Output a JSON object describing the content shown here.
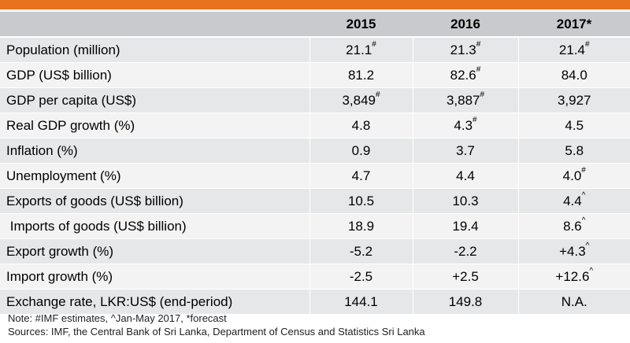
{
  "columns": [
    "",
    "2015",
    "2016",
    "2017*"
  ],
  "rows": [
    {
      "label": "Population (million)",
      "cells": [
        {
          "v": "21.1",
          "s": "#"
        },
        {
          "v": "21.3",
          "s": "#"
        },
        {
          "v": "21.4",
          "s": "#"
        }
      ]
    },
    {
      "label": "GDP (US$ billion)",
      "cells": [
        {
          "v": "81.2",
          "s": ""
        },
        {
          "v": "82.6",
          "s": "#"
        },
        {
          "v": "84.0",
          "s": ""
        }
      ]
    },
    {
      "label": "GDP per capita (US$)",
      "cells": [
        {
          "v": "3,849",
          "s": "#"
        },
        {
          "v": "3,887",
          "s": "#"
        },
        {
          "v": "3,927",
          "s": ""
        }
      ]
    },
    {
      "label": "Real GDP growth (%)",
      "cells": [
        {
          "v": "4.8",
          "s": ""
        },
        {
          "v": "4.3",
          "s": "#"
        },
        {
          "v": "4.5",
          "s": ""
        }
      ]
    },
    {
      "label": "Inflation (%)",
      "cells": [
        {
          "v": "0.9",
          "s": ""
        },
        {
          "v": "3.7",
          "s": ""
        },
        {
          "v": "5.8",
          "s": ""
        }
      ]
    },
    {
      "label": "Unemployment (%)",
      "cells": [
        {
          "v": "4.7",
          "s": ""
        },
        {
          "v": "4.4",
          "s": ""
        },
        {
          "v": "4.0",
          "s": "#"
        }
      ]
    },
    {
      "label": "Exports of goods (US$ billion)",
      "cells": [
        {
          "v": "10.5",
          "s": ""
        },
        {
          "v": "10.3",
          "s": ""
        },
        {
          "v": "4.4",
          "s": "^"
        }
      ]
    },
    {
      "label": " Imports of goods (US$ billion)",
      "cells": [
        {
          "v": "18.9",
          "s": ""
        },
        {
          "v": "19.4",
          "s": ""
        },
        {
          "v": "8.6",
          "s": "^"
        }
      ]
    },
    {
      "label": "Export growth (%)",
      "cells": [
        {
          "v": "-5.2",
          "s": ""
        },
        {
          "v": "-2.2",
          "s": ""
        },
        {
          "v": "+4.3",
          "s": "^"
        }
      ]
    },
    {
      "label": "Import growth (%)",
      "cells": [
        {
          "v": "-2.5",
          "s": ""
        },
        {
          "v": "+2.5",
          "s": ""
        },
        {
          "v": "+12.6",
          "s": "^"
        }
      ]
    },
    {
      "label": "Exchange rate, LKR:US$ (end-period)",
      "cells": [
        {
          "v": "144.1",
          "s": ""
        },
        {
          "v": "149.8",
          "s": ""
        },
        {
          "v": "N.A.",
          "s": ""
        }
      ]
    }
  ],
  "notes": {
    "note": "Note: #IMF estimates, ^Jan-May 2017, *forecast",
    "sources": "Sources: IMF, the Central Bank of Sri Lanka, Department of Census and Statistics Sri Lanka"
  },
  "colors": {
    "accent_bar": "#e8721f",
    "header_bg": "#c9cacd",
    "row_odd": "#e6e7e8",
    "row_even": "#f3f3f4"
  }
}
